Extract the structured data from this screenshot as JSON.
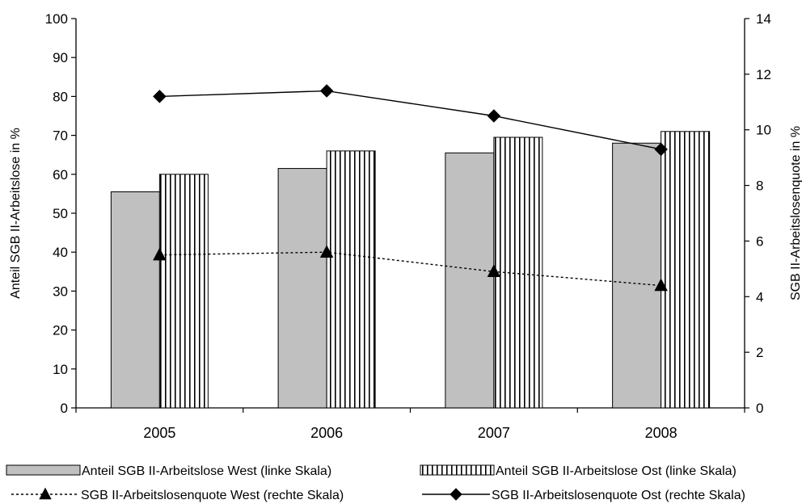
{
  "chart_data": {
    "type": "bar",
    "categories": [
      "2005",
      "2006",
      "2007",
      "2008"
    ],
    "y_left": {
      "label": "Anteil SGB II-Arbeitslose in %",
      "range": [
        0,
        100
      ],
      "ticks": [
        "0",
        "10",
        "20",
        "30",
        "40",
        "50",
        "60",
        "70",
        "80",
        "90",
        "100"
      ]
    },
    "y_right": {
      "label": "SGB II-Arbeitslosenquote in %",
      "range": [
        0,
        14
      ],
      "ticks": [
        "0",
        "2",
        "4",
        "6",
        "8",
        "10",
        "12",
        "14"
      ]
    },
    "series": [
      {
        "name": "Anteil SGB II-Arbeitslose West (linke Skala)",
        "kind": "bar",
        "axis": "left",
        "fill": "#c0c0c0",
        "values": [
          55.5,
          61.5,
          65.5,
          68
        ]
      },
      {
        "name": "Anteil SGB II-Arbeitslose Ost (linke Skala)",
        "kind": "bar",
        "axis": "left",
        "fill": "vertical-stripes",
        "values": [
          60,
          66,
          69.5,
          71
        ]
      },
      {
        "name": "SGB II-Arbeitslosenquote West (rechte Skala)",
        "kind": "line",
        "axis": "right",
        "line_style": "dotted",
        "marker": "triangle",
        "values": [
          5.5,
          5.6,
          4.9,
          4.4
        ]
      },
      {
        "name": "SGB II-Arbeitslosenquote Ost (rechte Skala)",
        "kind": "line",
        "axis": "right",
        "line_style": "solid",
        "marker": "diamond",
        "values": [
          11.2,
          11.4,
          10.5,
          9.3
        ]
      }
    ],
    "grid": false,
    "legend_position": "bottom"
  }
}
